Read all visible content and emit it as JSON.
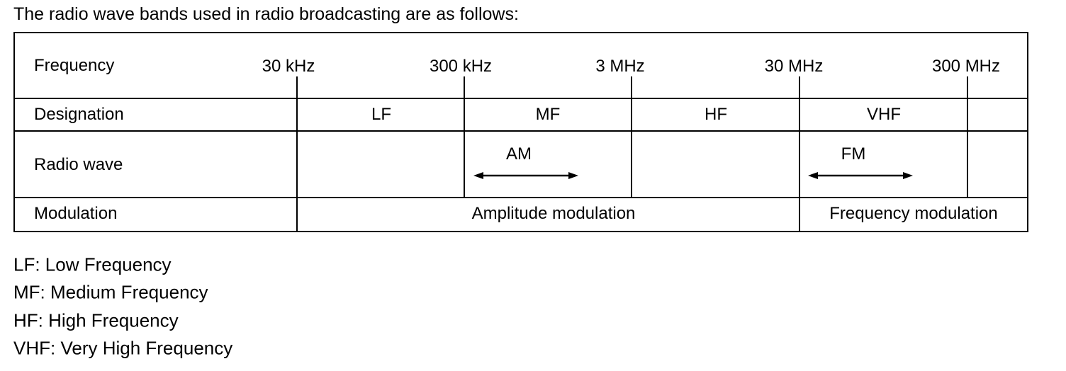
{
  "title": "The radio wave bands used in radio broadcasting are as follows:",
  "table": {
    "row_headers": [
      "Frequency",
      "Designation",
      "Radio wave",
      "Modulation"
    ],
    "frequencies": [
      "30 kHz",
      "300 kHz",
      "3 MHz",
      "30 MHz",
      "300 MHz"
    ],
    "designations": [
      "LF",
      "MF",
      "HF",
      "VHF"
    ],
    "radio_waves": {
      "am": "AM",
      "fm": "FM"
    },
    "modulations": [
      "Amplitude modulation",
      "Frequency modulation"
    ]
  },
  "legend": [
    "LF: Low Frequency",
    "MF: Medium Frequency",
    "HF: High Frequency",
    "VHF: Very High Frequency"
  ]
}
